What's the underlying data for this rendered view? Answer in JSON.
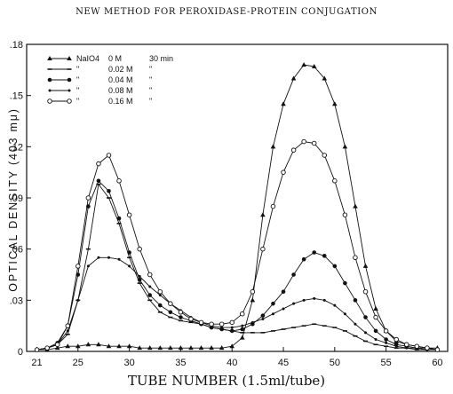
{
  "page_header": "NEW METHOD FOR PEROXIDASE-PROTEIN CONJUGATION",
  "colors": {
    "ink": "#111111",
    "background": "#ffffff"
  },
  "chart_data": {
    "type": "line",
    "title": "",
    "xlabel": "TUBE NUMBER (1.5ml/tube)",
    "ylabel": "OPTICAL DENSITY (403 mμ)",
    "xlim": [
      20,
      61
    ],
    "ylim": [
      0,
      0.18
    ],
    "x_ticks": [
      21,
      25,
      30,
      35,
      40,
      45,
      50,
      55,
      60
    ],
    "x_tick_labels": [
      "21",
      "25",
      "30",
      "35",
      "40",
      "45",
      "50",
      "55",
      "60"
    ],
    "y_ticks": [
      0,
      0.03,
      0.06,
      0.09,
      0.12,
      0.15,
      0.18
    ],
    "y_tick_labels": [
      "0",
      ".03",
      ".06",
      ".09",
      ".12",
      ".15",
      ".18"
    ],
    "grid": false,
    "legend_position": "top-left",
    "legend": [
      {
        "reagent": "NaIO4",
        "conc": "0 M",
        "time": "30 min",
        "marker": "triangle-filled"
      },
      {
        "reagent": "\"",
        "conc": "0.02 M",
        "time": "\"",
        "marker": "dash"
      },
      {
        "reagent": "\"",
        "conc": "0.04 M",
        "time": "\"",
        "marker": "circle-filled"
      },
      {
        "reagent": "\"",
        "conc": "0.08 M",
        "time": "\"",
        "marker": "dot"
      },
      {
        "reagent": "\"",
        "conc": "0.16 M",
        "time": "\"",
        "marker": "circle-open"
      }
    ],
    "series": [
      {
        "marker": "triangle-filled",
        "x": [
          21,
          22,
          23,
          24,
          25,
          26,
          27,
          28,
          29,
          30,
          31,
          32,
          33,
          34,
          35,
          36,
          37,
          38,
          39,
          40,
          41,
          42,
          43,
          44,
          45,
          46,
          47,
          48,
          49,
          50,
          51,
          52,
          53,
          54,
          55,
          56,
          57,
          58,
          59,
          60
        ],
        "y": [
          0.001,
          0.001,
          0.002,
          0.003,
          0.003,
          0.004,
          0.004,
          0.003,
          0.003,
          0.003,
          0.002,
          0.002,
          0.002,
          0.002,
          0.002,
          0.002,
          0.002,
          0.002,
          0.002,
          0.003,
          0.008,
          0.03,
          0.08,
          0.12,
          0.145,
          0.16,
          0.168,
          0.167,
          0.16,
          0.145,
          0.12,
          0.085,
          0.05,
          0.025,
          0.012,
          0.006,
          0.004,
          0.003,
          0.002,
          0.002
        ]
      },
      {
        "marker": "dash",
        "x": [
          21,
          22,
          23,
          24,
          25,
          26,
          27,
          28,
          29,
          30,
          31,
          32,
          33,
          34,
          35,
          36,
          37,
          38,
          39,
          40,
          41,
          42,
          43,
          44,
          45,
          46,
          47,
          48,
          49,
          50,
          51,
          52,
          53,
          54,
          55,
          56,
          57,
          58,
          59,
          60
        ],
        "y": [
          0.001,
          0.002,
          0.004,
          0.01,
          0.03,
          0.06,
          0.098,
          0.09,
          0.075,
          0.055,
          0.04,
          0.03,
          0.023,
          0.02,
          0.018,
          0.017,
          0.016,
          0.014,
          0.013,
          0.012,
          0.011,
          0.011,
          0.011,
          0.012,
          0.013,
          0.014,
          0.015,
          0.016,
          0.015,
          0.014,
          0.012,
          0.009,
          0.006,
          0.004,
          0.003,
          0.002,
          0.002,
          0.001,
          0.001,
          0.001
        ]
      },
      {
        "marker": "circle-filled",
        "x": [
          21,
          22,
          23,
          24,
          25,
          26,
          27,
          28,
          29,
          30,
          31,
          32,
          33,
          34,
          35,
          36,
          37,
          38,
          39,
          40,
          41,
          42,
          43,
          44,
          45,
          46,
          47,
          48,
          49,
          50,
          51,
          52,
          53,
          54,
          55,
          56,
          57,
          58,
          59,
          60
        ],
        "y": [
          0.001,
          0.002,
          0.005,
          0.015,
          0.045,
          0.085,
          0.1,
          0.094,
          0.078,
          0.058,
          0.042,
          0.033,
          0.027,
          0.023,
          0.02,
          0.018,
          0.016,
          0.014,
          0.013,
          0.012,
          0.013,
          0.016,
          0.021,
          0.028,
          0.035,
          0.045,
          0.054,
          0.058,
          0.056,
          0.05,
          0.04,
          0.03,
          0.02,
          0.012,
          0.007,
          0.004,
          0.003,
          0.002,
          0.002,
          0.001
        ]
      },
      {
        "marker": "dot",
        "x": [
          21,
          22,
          23,
          24,
          25,
          26,
          27,
          28,
          29,
          30,
          31,
          32,
          33,
          34,
          35,
          36,
          37,
          38,
          39,
          40,
          41,
          42,
          43,
          44,
          45,
          46,
          47,
          48,
          49,
          50,
          51,
          52,
          53,
          54,
          55,
          56,
          57,
          58,
          59,
          60
        ],
        "y": [
          0.001,
          0.002,
          0.004,
          0.012,
          0.03,
          0.05,
          0.055,
          0.055,
          0.054,
          0.05,
          0.044,
          0.038,
          0.033,
          0.028,
          0.024,
          0.02,
          0.017,
          0.015,
          0.014,
          0.014,
          0.015,
          0.017,
          0.019,
          0.022,
          0.025,
          0.028,
          0.03,
          0.031,
          0.03,
          0.027,
          0.022,
          0.016,
          0.011,
          0.007,
          0.005,
          0.003,
          0.002,
          0.002,
          0.001,
          0.001
        ]
      },
      {
        "marker": "circle-open",
        "x": [
          21,
          22,
          23,
          24,
          25,
          26,
          27,
          28,
          29,
          30,
          31,
          32,
          33,
          34,
          35,
          36,
          37,
          38,
          39,
          40,
          41,
          42,
          43,
          44,
          45,
          46,
          47,
          48,
          49,
          50,
          51,
          52,
          53,
          54,
          55,
          56,
          57,
          58,
          59,
          60
        ],
        "y": [
          0.001,
          0.002,
          0.004,
          0.015,
          0.05,
          0.09,
          0.11,
          0.115,
          0.1,
          0.08,
          0.06,
          0.045,
          0.035,
          0.028,
          0.023,
          0.019,
          0.017,
          0.016,
          0.016,
          0.017,
          0.022,
          0.035,
          0.06,
          0.085,
          0.105,
          0.118,
          0.123,
          0.122,
          0.115,
          0.1,
          0.08,
          0.055,
          0.035,
          0.02,
          0.012,
          0.007,
          0.004,
          0.003,
          0.002,
          0.001
        ]
      }
    ]
  }
}
